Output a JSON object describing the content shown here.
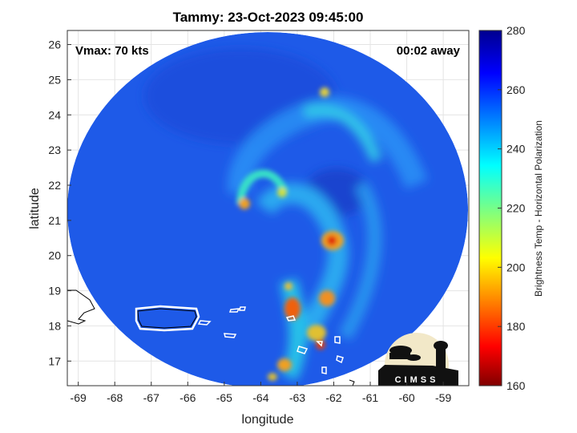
{
  "header": {
    "title": "Tammy: 23-Oct-2023 09:45:00"
  },
  "annotations": {
    "vmax": "Vmax: 70 kts",
    "time_away": "00:02 away"
  },
  "map": {
    "xlabel": "longitude",
    "ylabel": "latitude",
    "lon_range": [
      -69.3,
      -58.3
    ],
    "lat_range": [
      16.3,
      26.4
    ],
    "lon_ticks": [
      "-69",
      "-68",
      "-67",
      "-66",
      "-65",
      "-64",
      "-63",
      "-62",
      "-61",
      "-60",
      "-59"
    ],
    "lat_ticks": [
      "17",
      "18",
      "19",
      "20",
      "21",
      "22",
      "23",
      "24",
      "25",
      "26"
    ]
  },
  "colorbar": {
    "label": "Brightness Temp - Horizontal Polarization",
    "range": [
      160,
      280
    ],
    "ticks": [
      "160",
      "180",
      "200",
      "220",
      "240",
      "260",
      "280"
    ]
  },
  "logo": {
    "text": "CIMSS"
  },
  "colors": {
    "background_scene": "#1e5ae8",
    "coast": "#ffffff"
  }
}
